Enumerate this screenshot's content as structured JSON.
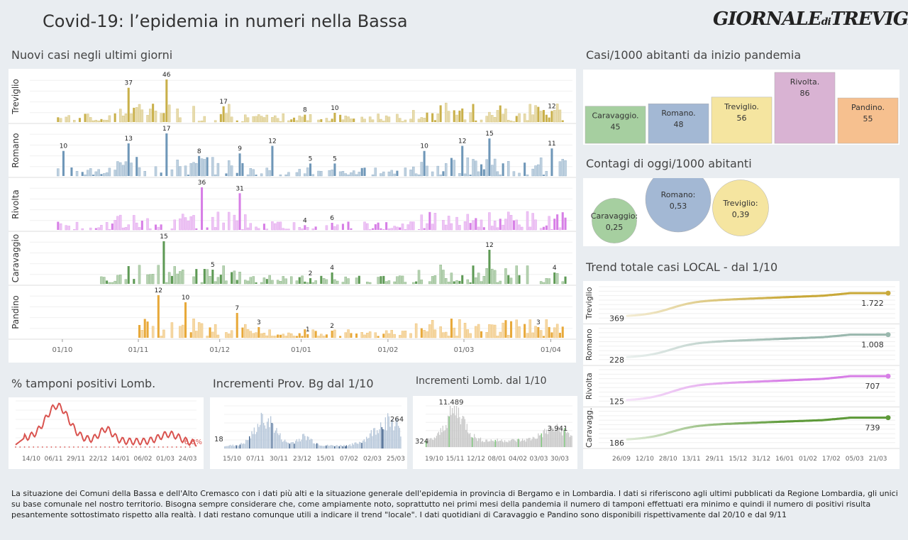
{
  "header": {
    "title": "Covid-19: l’epidemia  in numeri nella Bassa",
    "logo_main1": "Giornale",
    "logo_di": "di",
    "logo_main2": "Treviglio"
  },
  "sections": {
    "new_cases": "Nuovi casi negli ultimi   giorni",
    "cases_1000": "Casi/1000 abitanti da inizio pandemia",
    "today_1000": "Contagi di oggi/1000 abitanti",
    "trend": "Trend totale casi  LOCAL - dal 1/10",
    "tamponi": "% tamponi positivi Lomb.",
    "incr_bg": "Incrementi Prov. Bg dal 1/10",
    "incr_lomb": "Incrementi Lomb. dal 1/10"
  },
  "footer": "La situazione dei Comuni della Bassa e dell'Alto Cremasco con i dati più alti e la situazione generale dell'epidemia in provincia di Bergamo e in Lombardia.  I dati si riferiscono agli ultimi pubblicati da Regione Lombardia, gli unici su base comunale nel  nostro territorio.  Bisogna sempre considerare che, come ampiamente noto, soprattutto nei primi mesi della pandemia il numero di tamponi effettuati era minimo e quindi il numero di positivi risulta pesantemente sottostimato rispetto alla realtà. I dati restano comunque utili a indicare il trend \"locale\".  I dati quotidiani di Caravaggio e Pandino sono disponibili rispettivamente dal 20/10 e dal 9/11",
  "colors": {
    "Treviglio": "#c9b04a",
    "Romano": "#6f97b8",
    "Rivolta": "#d77fe6",
    "Caravaggio": "#5e9a55",
    "Pandino": "#e8a93a",
    "red": "#d9534f"
  },
  "chart_data": [
    {
      "type": "bar",
      "title": "Nuovi casi negli ultimi   giorni",
      "x_ticks": [
        "01/10",
        "01/11",
        "01/12",
        "01/01",
        "01/02",
        "01/03",
        "01/04"
      ],
      "series": [
        {
          "name": "Treviglio",
          "color": "#c9b04a",
          "labels": [
            {
              "i": 36,
              "v": 37
            },
            {
              "i": 50,
              "v": 46
            },
            {
              "i": 71,
              "v": 17
            },
            {
              "i": 101,
              "v": 8
            },
            {
              "i": 112,
              "v": 10
            },
            {
              "i": 192,
              "v": 12
            }
          ],
          "max": 46
        },
        {
          "name": "Romano",
          "color": "#6f97b8",
          "labels": [
            {
              "i": 12,
              "v": 10
            },
            {
              "i": 36,
              "v": 13
            },
            {
              "i": 50,
              "v": 17
            },
            {
              "i": 62,
              "v": 8
            },
            {
              "i": 77,
              "v": 9
            },
            {
              "i": 89,
              "v": 12
            },
            {
              "i": 103,
              "v": 5
            },
            {
              "i": 112,
              "v": 5
            },
            {
              "i": 145,
              "v": 10
            },
            {
              "i": 159,
              "v": 12
            },
            {
              "i": 169,
              "v": 15
            },
            {
              "i": 192,
              "v": 11
            }
          ],
          "max": 17
        },
        {
          "name": "Rivolta",
          "color": "#d77fe6",
          "labels": [
            {
              "i": 63,
              "v": 36
            },
            {
              "i": 77,
              "v": 31
            },
            {
              "i": 101,
              "v": 4
            },
            {
              "i": 111,
              "v": 6
            }
          ],
          "max": 36
        },
        {
          "name": "Caravaggio",
          "color": "#5e9a55",
          "labels": [
            {
              "i": 49,
              "v": 15
            },
            {
              "i": 67,
              "v": 5
            },
            {
              "i": 103,
              "v": 2
            },
            {
              "i": 111,
              "v": 4
            },
            {
              "i": 169,
              "v": 12
            },
            {
              "i": 193,
              "v": 4
            }
          ],
          "max": 15
        },
        {
          "name": "Pandino",
          "color": "#e8a93a",
          "labels": [
            {
              "i": 47,
              "v": 12
            },
            {
              "i": 57,
              "v": 10
            },
            {
              "i": 76,
              "v": 7
            },
            {
              "i": 84,
              "v": 3
            },
            {
              "i": 102,
              "v": 1
            },
            {
              "i": 111,
              "v": 2
            },
            {
              "i": 187,
              "v": 3
            }
          ],
          "max": 12
        }
      ]
    },
    {
      "type": "bar",
      "title": "Casi/1000 abitanti da inizio pandemia",
      "categories": [
        "Caravaggio.",
        "Romano.",
        "Treviglio.",
        "Rivolta.",
        "Pandino."
      ],
      "values": [
        45,
        48,
        56,
        86,
        55
      ],
      "colors": [
        "#a6cfa0",
        "#a3b8d4",
        "#f5e5a0",
        "#d9b3d3",
        "#f6c08f"
      ]
    },
    {
      "type": "scatter",
      "title": "Contagi di oggi/1000 abitanti",
      "categories": [
        "Caravaggio:",
        "Romano:",
        "Treviglio:"
      ],
      "labels": [
        "0,25",
        "0,53",
        "0,39"
      ],
      "values": [
        0.25,
        0.53,
        0.39
      ],
      "colors": [
        "#a6cfa0",
        "#a3b8d4",
        "#f5e5a0"
      ]
    },
    {
      "type": "line",
      "title": "Trend totale casi  LOCAL - dal 1/10",
      "x_ticks": [
        "26/09",
        "12/10",
        "28/10",
        "13/11",
        "29/11",
        "15/12",
        "31/12",
        "16/01",
        "01/02",
        "17/02",
        "05/03",
        "21/03"
      ],
      "series": [
        {
          "name": "Treviglio",
          "start": 369,
          "end": 1722,
          "start_label": "369",
          "end_label": "1.722",
          "color": "#c9a93a"
        },
        {
          "name": "Romano",
          "start": 228,
          "end": 1008,
          "start_label": "228",
          "end_label": "1.008",
          "color": "#9ab8ae"
        },
        {
          "name": "Rivolta",
          "start": 125,
          "end": 707,
          "start_label": "125",
          "end_label": "707",
          "color": "#d77fe6"
        },
        {
          "name": "Caravagg.",
          "start": 186,
          "end": 739,
          "start_label": "186",
          "end_label": "739",
          "color": "#5e9a3a"
        }
      ]
    },
    {
      "type": "line",
      "title": "% tamponi positivi Lomb.",
      "x_ticks": [
        "14/10",
        "06/11",
        "29/11",
        "22/12",
        "14/01",
        "06/02",
        "01/03",
        "24/03"
      ],
      "last_label": "6,8%"
    },
    {
      "type": "bar",
      "title": "Incrementi Prov. Bg dal 1/10",
      "x_ticks": [
        "15/10",
        "07/11",
        "30/11",
        "23/12",
        "15/01",
        "07/02",
        "02/03",
        "25/03"
      ],
      "first_label": "18",
      "last_label": "264"
    },
    {
      "type": "bar",
      "title": "Incrementi Lomb. dal 1/10",
      "x_ticks": [
        "19/10",
        "15/11",
        "12/12",
        "08/01",
        "04/02",
        "03/03",
        "30/03"
      ],
      "first_label": "324",
      "peak_label": "11.489",
      "last_label": "3.941"
    }
  ]
}
